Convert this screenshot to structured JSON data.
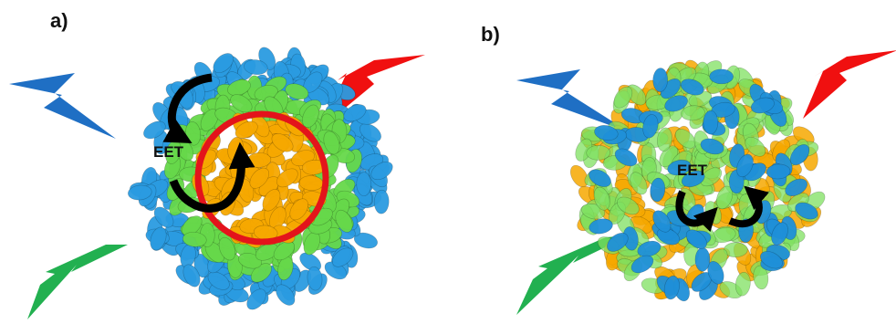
{
  "panels": [
    {
      "label": "a)",
      "annotation": "EET"
    },
    {
      "label": "b)",
      "annotation": "EET"
    }
  ]
}
